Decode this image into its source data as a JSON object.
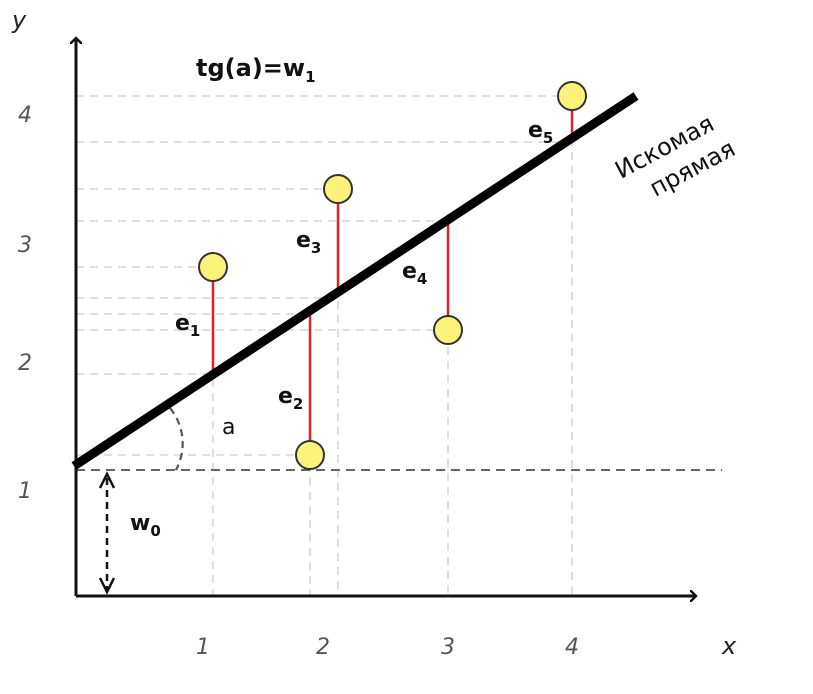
{
  "axes": {
    "x_name": "x",
    "y_name": "y",
    "x_ticks": [
      "1",
      "2",
      "3",
      "4"
    ],
    "y_ticks": [
      "1",
      "2",
      "3",
      "4"
    ]
  },
  "formula": {
    "base": "tg(a)=w",
    "sub": "1"
  },
  "angle_label": "a",
  "intercept_label": {
    "base": "w",
    "sub": "0"
  },
  "line_caption": [
    "Искомая",
    "прямая"
  ],
  "residual_labels": [
    {
      "base": "e",
      "sub": "1"
    },
    {
      "base": "e",
      "sub": "2"
    },
    {
      "base": "e",
      "sub": "3"
    },
    {
      "base": "e",
      "sub": "4"
    },
    {
      "base": "e",
      "sub": "5"
    }
  ],
  "colors": {
    "point_fill": "#fdf37a",
    "residual": "#e0202a",
    "line": "#000000"
  }
}
